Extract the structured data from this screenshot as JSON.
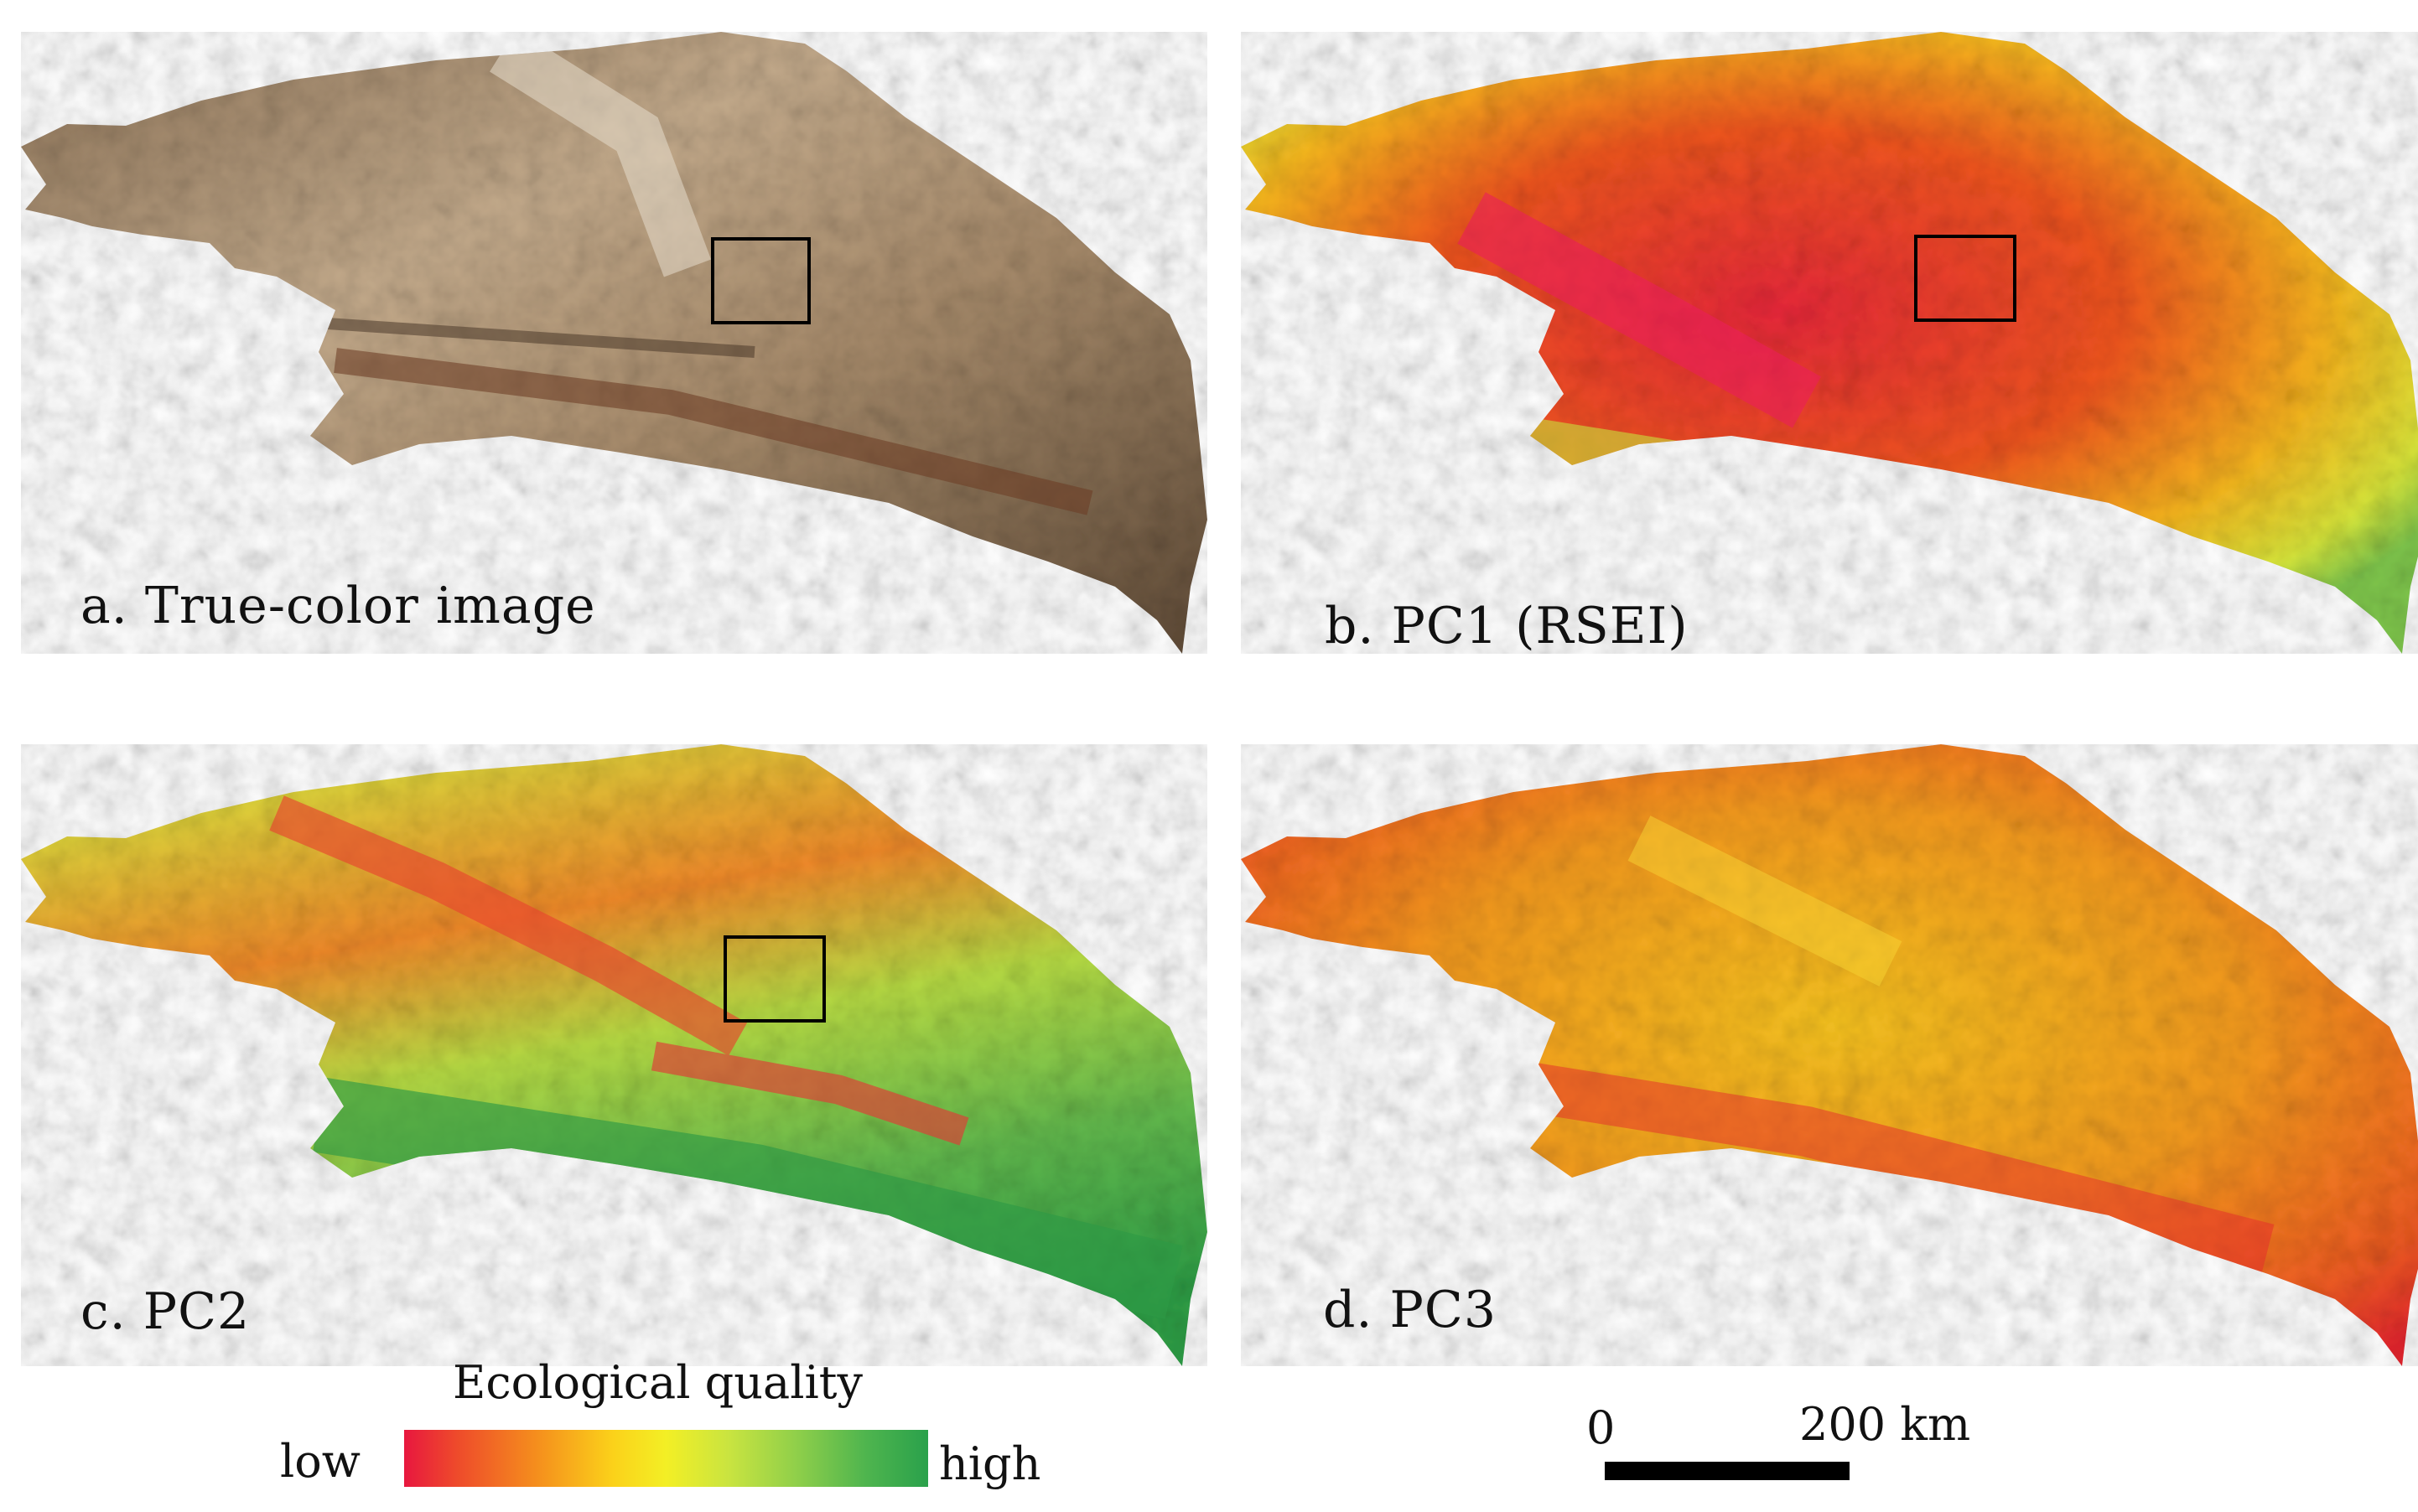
{
  "panels": {
    "a": {
      "label": "a. True-color image",
      "icon": "true-color-satellite-map"
    },
    "b": {
      "label": "b. PC1 (RSEI)",
      "icon": "pc1-rsei-map"
    },
    "c": {
      "label": "c. PC2",
      "icon": "pc2-map"
    },
    "d": {
      "label": "d. PC3",
      "icon": "pc3-map"
    }
  },
  "legend": {
    "title": "Ecological quality",
    "low_label": "low",
    "high_label": "high",
    "colors": [
      "#e8173f",
      "#f58d1d",
      "#f3ef25",
      "#8fcf4a",
      "#2aa14b"
    ]
  },
  "scale_bar": {
    "start_label": "0",
    "end_label": "200 km"
  }
}
